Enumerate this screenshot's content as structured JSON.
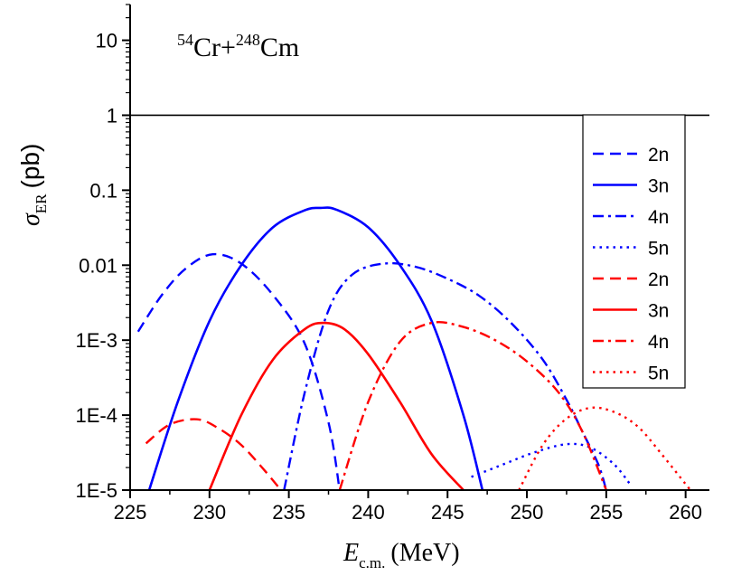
{
  "chart_data": {
    "type": "line",
    "title": {
      "mass_a": "54",
      "elem_a": "Cr",
      "plus": "+",
      "mass_b": "248",
      "elem_b": "Cm"
    },
    "xlabel": {
      "symbol": "E",
      "sub": "c.m.",
      "unit": "(MeV)"
    },
    "ylabel": {
      "symbol": "σ",
      "sub": "ER",
      "unit": "(pb)"
    },
    "xlim": [
      225,
      261.5
    ],
    "ylim": [
      1e-05,
      30
    ],
    "yscale": "log",
    "xticks": [
      225,
      230,
      235,
      240,
      245,
      250,
      255,
      260
    ],
    "xtick_labels": [
      "225",
      "230",
      "235",
      "240",
      "245",
      "250",
      "255",
      "260"
    ],
    "yticks": [
      1e-05,
      0.0001,
      0.001,
      0.01,
      0.1,
      1,
      10
    ],
    "ytick_labels": [
      "1E-5",
      "1E-4",
      "1E-3",
      "0.01",
      "0.1",
      "1",
      "10"
    ],
    "reference_line": {
      "y": 1,
      "color": "#000000"
    },
    "legend": {
      "position": "right"
    },
    "series": [
      {
        "name": "2n",
        "color": "#0000ff",
        "style": "dashed",
        "x": [
          225.5,
          227,
          228.5,
          230.2,
          232,
          234,
          236,
          237.5,
          238.2
        ],
        "y": [
          0.0013,
          0.004,
          0.009,
          0.014,
          0.0105,
          0.004,
          0.0009,
          8e-05,
          1e-05
        ]
      },
      {
        "name": "3n",
        "color": "#0000ff",
        "style": "solid",
        "x": [
          226.2,
          228,
          230,
          232,
          234,
          236,
          237,
          238,
          240,
          242,
          244,
          246,
          247.2
        ],
        "y": [
          1e-05,
          0.00015,
          0.0018,
          0.01,
          0.032,
          0.054,
          0.058,
          0.055,
          0.032,
          0.01,
          0.0018,
          0.0001,
          1e-05
        ]
      },
      {
        "name": "4n",
        "color": "#0000ff",
        "style": "dashdot",
        "x": [
          234.7,
          236,
          237.5,
          239,
          241,
          243,
          245,
          247,
          249,
          251,
          252.5,
          253.5,
          254.5,
          255
        ],
        "y": [
          1e-05,
          0.0002,
          0.0025,
          0.0075,
          0.0105,
          0.0095,
          0.0066,
          0.0039,
          0.0017,
          0.00055,
          0.00016,
          6e-05,
          2.2e-05,
          1e-05
        ]
      },
      {
        "name": "5n",
        "color": "#0000ff",
        "style": "dotted",
        "x": [
          246.5,
          248.5,
          250.5,
          252.5,
          254,
          255.5,
          256.5
        ],
        "y": [
          1.5e-05,
          2.2e-05,
          3.2e-05,
          4.1e-05,
          3.7e-05,
          2.2e-05,
          1.2e-05
        ]
      },
      {
        "name": "2n",
        "color": "#ff0000",
        "style": "dashed",
        "x": [
          226,
          227.5,
          229.2,
          230.5,
          232,
          233.5,
          234.5
        ],
        "y": [
          4.2e-05,
          7.5e-05,
          8.8e-05,
          6.8e-05,
          4e-05,
          1.8e-05,
          1e-05
        ]
      },
      {
        "name": "3n",
        "color": "#ff0000",
        "style": "solid",
        "x": [
          230,
          232,
          234,
          236,
          237.2,
          238.5,
          240,
          242,
          244,
          246
        ],
        "y": [
          1e-05,
          0.0001,
          0.00055,
          0.0014,
          0.0017,
          0.0014,
          0.00065,
          0.00015,
          3e-05,
          1e-05
        ]
      },
      {
        "name": "4n",
        "color": "#ff0000",
        "style": "dashdot",
        "x": [
          238.2,
          240,
          242,
          244,
          246,
          248,
          250,
          252,
          253.5,
          255
        ],
        "y": [
          1e-05,
          0.00015,
          0.00095,
          0.0017,
          0.0015,
          0.001,
          0.00052,
          0.0002,
          6e-05,
          1e-05
        ]
      },
      {
        "name": "5n",
        "color": "#ff0000",
        "style": "dotted",
        "x": [
          249.5,
          251,
          252.5,
          254,
          255.5,
          257,
          258.5,
          260.3
        ],
        "y": [
          1e-05,
          4e-05,
          9e-05,
          0.000125,
          0.00011,
          7e-05,
          3e-05,
          1e-05
        ]
      }
    ]
  }
}
